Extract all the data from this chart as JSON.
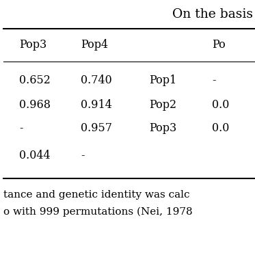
{
  "title_partial": "On the basis",
  "col_headers": [
    "Pop3",
    "Pop4",
    "",
    "Po"
  ],
  "table_data": [
    [
      "0.652",
      "0.740",
      "Pop1",
      "-"
    ],
    [
      "0.968",
      "0.914",
      "Pop2",
      "0.0"
    ],
    [
      "-",
      "0.957",
      "Pop3",
      "0.0"
    ],
    [
      "0.044",
      "-",
      "",
      ""
    ]
  ],
  "footer_line1": "tance and genetic identity was calc",
  "footer_line2": "o with 999 permutations (Nei, 1978",
  "bg_color": "#ffffff",
  "text_color": "#000000",
  "font_size": 11.5,
  "title_font_size": 13.5
}
